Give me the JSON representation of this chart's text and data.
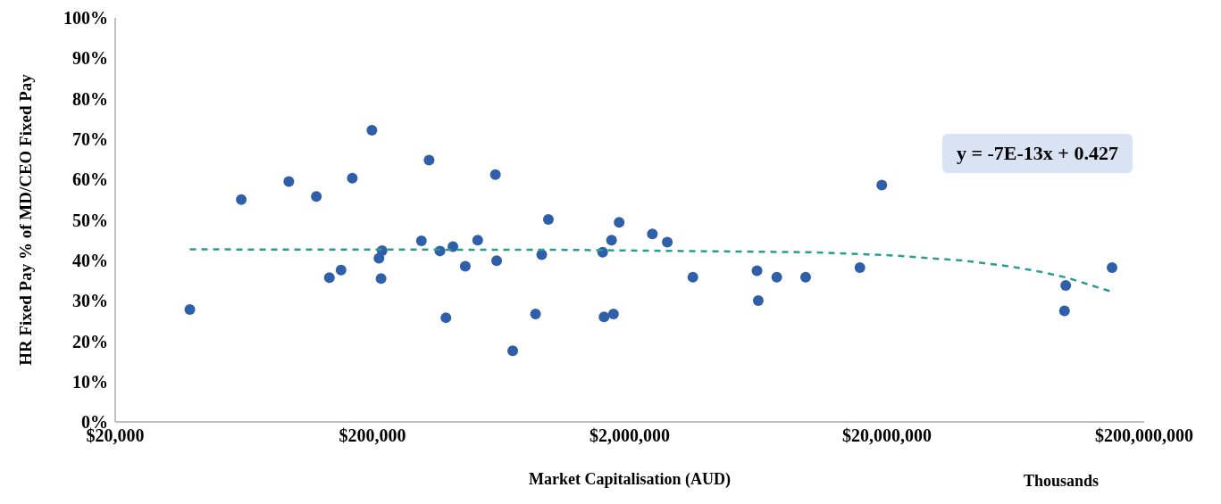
{
  "chart_data": {
    "type": "scatter",
    "xlabel": "Market Capitalisation (AUD)",
    "ylabel": "HR Fixed Pay % of MD/CEO Fixed Pay",
    "annotations": [
      "y = -7E-13x + 0.427",
      "Thousands"
    ],
    "log": "x",
    "xlim": [
      20000,
      200000000
    ],
    "xticks": [
      {
        "value": 20000,
        "label": "$20,000"
      },
      {
        "value": 200000,
        "label": "$200,000"
      },
      {
        "value": 2000000,
        "label": "$2,000,000"
      },
      {
        "value": 20000000,
        "label": "$20,000,000"
      },
      {
        "value": 200000000,
        "label": "$200,000,000"
      }
    ],
    "ylim": [
      0,
      100
    ],
    "yticks": [
      {
        "value": 0,
        "label": "0%"
      },
      {
        "value": 10,
        "label": "10%"
      },
      {
        "value": 20,
        "label": "20%"
      },
      {
        "value": 30,
        "label": "30%"
      },
      {
        "value": 40,
        "label": "40%"
      },
      {
        "value": 50,
        "label": "50%"
      },
      {
        "value": 60,
        "label": "60%"
      },
      {
        "value": 70,
        "label": "70%"
      },
      {
        "value": 80,
        "label": "80%"
      },
      {
        "value": 90,
        "label": "90%"
      },
      {
        "value": 100,
        "label": "100%"
      }
    ],
    "marker": "circle",
    "series": [
      {
        "type": "scatter",
        "color": "#2e5fa8",
        "x": [
          39000,
          61800,
          94600,
          121000,
          136000,
          151000,
          167000,
          199000,
          212000,
          218000,
          216000,
          310000,
          332000,
          366000,
          386000,
          411000,
          459000,
          513000,
          601000,
          608000,
          702000,
          861000,
          910000,
          966000,
          1570000,
          1590000,
          1700000,
          1730000,
          1820000,
          2450000,
          2800000,
          3520000,
          6250000,
          6320000,
          7460000,
          9660000,
          15700000,
          19100000,
          98000000,
          99100000,
          150000000
        ],
        "values": [
          27.8,
          55.0,
          59.5,
          55.8,
          35.7,
          37.6,
          60.3,
          72.2,
          40.5,
          42.4,
          35.5,
          44.8,
          64.8,
          42.3,
          25.8,
          43.4,
          38.5,
          45.0,
          61.2,
          39.9,
          17.6,
          26.7,
          41.4,
          50.1,
          42.0,
          26.0,
          45.0,
          26.7,
          49.4,
          46.5,
          44.5,
          35.8,
          37.4,
          30.0,
          35.8,
          35.8,
          38.2,
          58.6,
          27.5,
          33.8,
          38.2
        ]
      },
      {
        "type": "line",
        "color": "#2a9d8f",
        "line_style": "dashed",
        "marker": "none",
        "x": [
          39000,
          1000000,
          10000000,
          20000000,
          40000000,
          60000000,
          80000000,
          100000000,
          150000000
        ],
        "values": [
          42.7,
          42.6,
          42.0,
          41.3,
          39.9,
          38.5,
          37.1,
          35.7,
          32.2
        ]
      }
    ]
  }
}
